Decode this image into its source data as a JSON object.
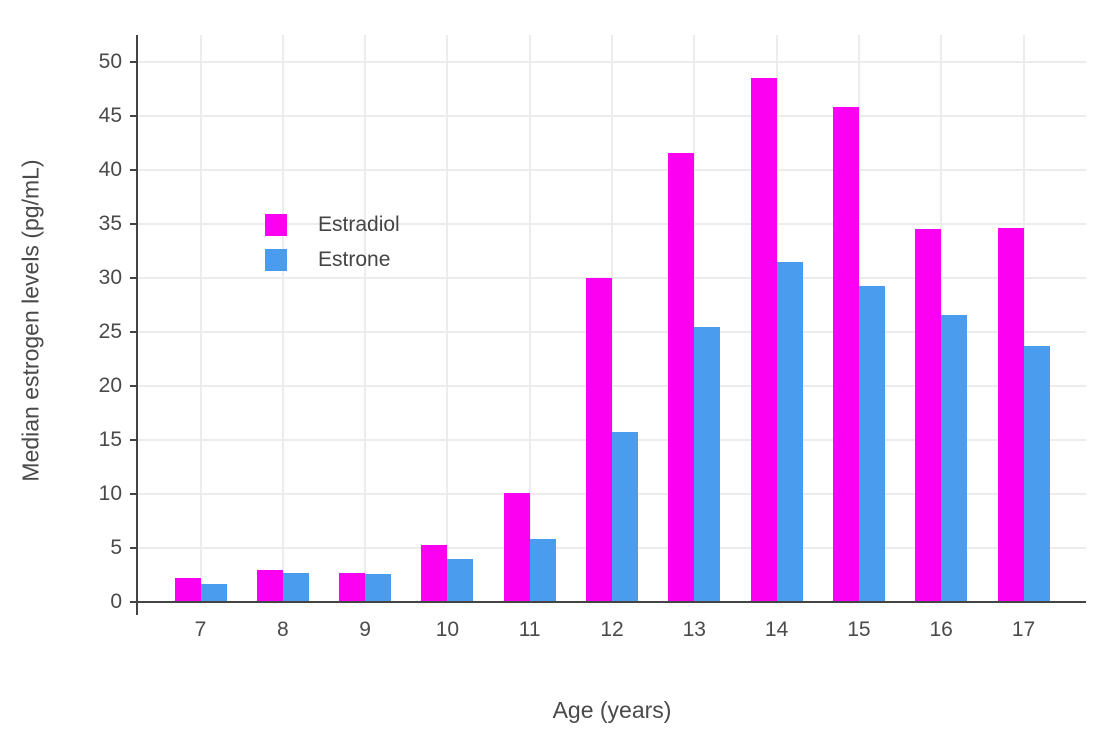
{
  "chart_data": {
    "type": "bar",
    "title": "",
    "xlabel": "Age (years)",
    "ylabel": "Median estrogen levels (pg/mL)",
    "categories": [
      "7",
      "8",
      "9",
      "10",
      "11",
      "12",
      "13",
      "14",
      "15",
      "16",
      "17"
    ],
    "series": [
      {
        "name": "Estradiol",
        "color": "#fc00f2",
        "values": [
          2.2,
          3.0,
          2.7,
          5.3,
          10.1,
          30.0,
          41.6,
          48.5,
          45.8,
          34.5,
          34.6
        ]
      },
      {
        "name": "Estrone",
        "color": "#4a9cee",
        "values": [
          1.7,
          2.7,
          2.6,
          4.0,
          5.8,
          15.7,
          25.5,
          31.5,
          29.3,
          26.6,
          23.7
        ]
      }
    ],
    "yticks": [
      0,
      5,
      10,
      15,
      20,
      25,
      30,
      35,
      40,
      45,
      50
    ],
    "ylim": [
      0,
      52.5
    ],
    "grid": true,
    "legend_position": "inside-top-left",
    "colors": {
      "axis": "#444444",
      "gridline": "#ececec",
      "tick_text": "#4a4a4a"
    }
  }
}
